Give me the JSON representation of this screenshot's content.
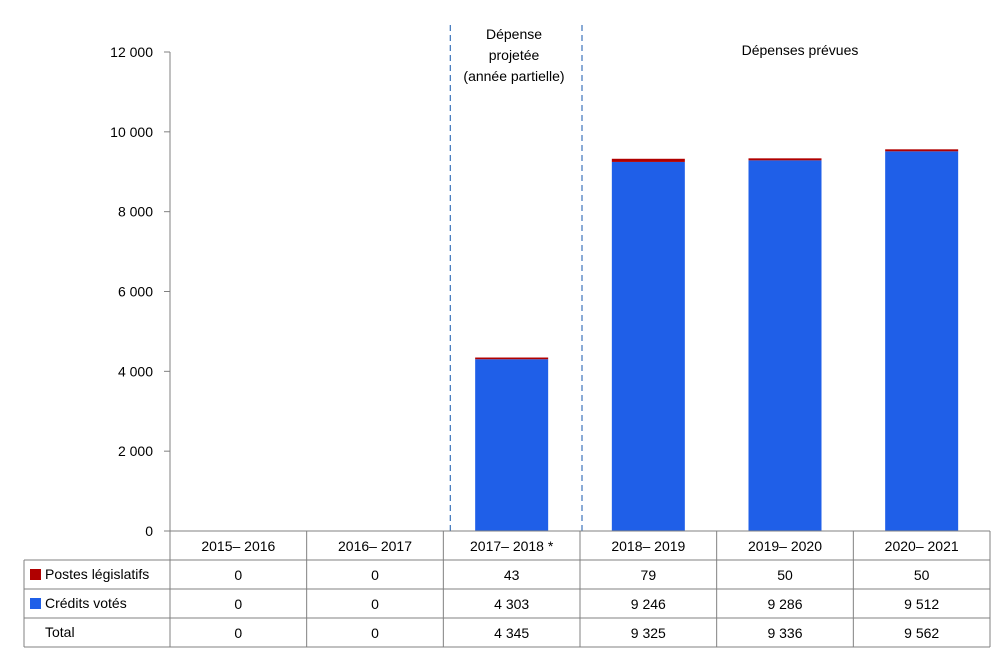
{
  "chart_data": {
    "type": "bar",
    "stacked": true,
    "categories": [
      "2015– 2016",
      "2016– 2017",
      "2017– 2018 *",
      "2018– 2019",
      "2019– 2020",
      "2020– 2021"
    ],
    "series": [
      {
        "name": "Crédits votés",
        "color": "#1f5fe8",
        "values": [
          0,
          0,
          4303,
          9246,
          9286,
          9512
        ]
      },
      {
        "name": "Postes législatifs",
        "color": "#b00000",
        "values": [
          0,
          0,
          43,
          79,
          50,
          50
        ]
      }
    ],
    "totals_label": "Total",
    "totals": [
      0,
      0,
      4345,
      9325,
      9336,
      9562
    ],
    "ylim": [
      0,
      12000
    ],
    "yticks": [
      0,
      2000,
      4000,
      6000,
      8000,
      10000,
      12000
    ],
    "ytick_labels": [
      "0",
      "2 000",
      "4 000",
      "6 000",
      "8 000",
      "10 000",
      "12 000"
    ],
    "annotations": {
      "projected": [
        "Dépense",
        "projetée",
        "(année partielle)"
      ],
      "planned": "Dépenses prévues"
    },
    "table": {
      "rows": [
        {
          "label": "Postes législatifs",
          "color": "#b00000",
          "cells": [
            "0",
            "0",
            "43",
            "79",
            "50",
            "50"
          ]
        },
        {
          "label": "Crédits votés",
          "color": "#1f5fe8",
          "cells": [
            "0",
            "0",
            "4 303",
            "9 246",
            "9 286",
            "9 512"
          ]
        },
        {
          "label": "Total",
          "color": "",
          "cells": [
            "0",
            "0",
            "4 345",
            "9 325",
            "9 336",
            "9 562"
          ]
        }
      ]
    },
    "grid": false,
    "legend": "table-left"
  }
}
